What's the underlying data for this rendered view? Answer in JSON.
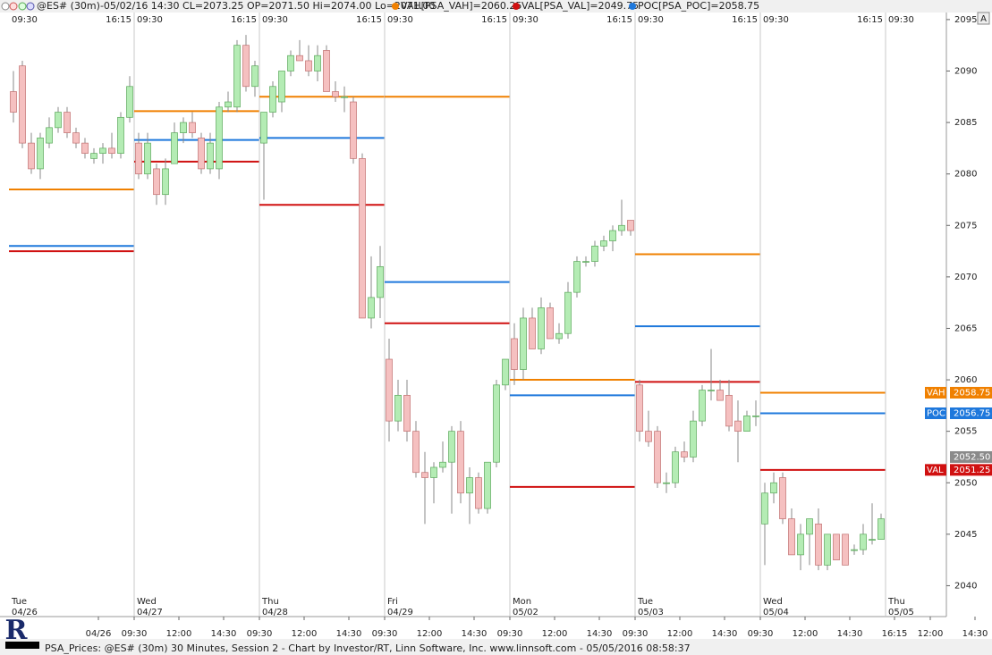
{
  "header": {
    "symbol": "@ES# (30m)-05/02/16 14:30 CL=2073.25 OP=2071.50 Hi=2074.00 Lo=2071.00",
    "indicators": [
      {
        "label": "VAH[PSA_VAH]=2060.25",
        "color": "#f08000"
      },
      {
        "label": "VAL[PSA_VAL]=2049.75",
        "color": "#d01010"
      },
      {
        "label": "POC[PSA_POC]=2058.75",
        "color": "#1e78dc"
      }
    ],
    "button": "A"
  },
  "chart_data": {
    "type": "candlestick",
    "ylim": [
      2037,
      2096.9
    ],
    "yticks": [
      2040,
      2045,
      2050,
      2055,
      2060,
      2065,
      2070,
      2075,
      2080,
      2085,
      2090,
      2095
    ],
    "up_color": "#b4ecb4",
    "down_color": "#f5c0c0",
    "vah_color": "#f08000",
    "poc_color": "#1e78dc",
    "val_color": "#d01010",
    "sessions": [
      {
        "weekday": "Tue",
        "date": "04/26",
        "open_time": "09:30",
        "close_time": "16:15",
        "vah": 2078.5,
        "poc": 2073,
        "val": 2072.5,
        "bars": [
          [
            2088,
            2090,
            2085,
            2086
          ],
          [
            2090.5,
            2091,
            2082.5,
            2083
          ],
          [
            2083,
            2084,
            2080,
            2080.5
          ],
          [
            2080.5,
            2084,
            2079.5,
            2083.5
          ],
          [
            2083,
            2085.5,
            2082.5,
            2084.5
          ],
          [
            2084.5,
            2086.5,
            2084,
            2086
          ],
          [
            2086,
            2086.5,
            2083.5,
            2084
          ],
          [
            2084,
            2084.5,
            2082.5,
            2083
          ],
          [
            2083,
            2083.5,
            2081.5,
            2082
          ],
          [
            2081.5,
            2082.5,
            2081,
            2082
          ],
          [
            2082,
            2083,
            2081,
            2082.5
          ],
          [
            2082.5,
            2084,
            2081.5,
            2082
          ],
          [
            2082,
            2086,
            2081.5,
            2085.5
          ],
          [
            2085.5,
            2089.5,
            2085,
            2088.5
          ]
        ]
      },
      {
        "weekday": "Wed",
        "date": "04/27",
        "open_time": "09:30",
        "close_time": "16:15",
        "vah": 2086.1,
        "poc": 2083.3,
        "val": 2081.2,
        "bars": [
          [
            2083,
            2084,
            2079.5,
            2080
          ],
          [
            2080,
            2084,
            2079.5,
            2083
          ],
          [
            2080.5,
            2081,
            2077,
            2078
          ],
          [
            2078,
            2081.5,
            2077,
            2080.5
          ],
          [
            2081,
            2085,
            2081,
            2084
          ],
          [
            2084,
            2085.5,
            2083,
            2085
          ],
          [
            2085,
            2086,
            2083.5,
            2084
          ],
          [
            2083.5,
            2084,
            2080,
            2080.5
          ],
          [
            2080.5,
            2084,
            2080,
            2083
          ],
          [
            2080.5,
            2087,
            2079.5,
            2086.5
          ],
          [
            2086.5,
            2088,
            2086,
            2087
          ],
          [
            2086.5,
            2093,
            2086,
            2092.5
          ],
          [
            2092.5,
            2093.5,
            2088,
            2088.5
          ],
          [
            2088.5,
            2091,
            2087.5,
            2090.5
          ]
        ]
      },
      {
        "weekday": "Thu",
        "date": "04/28",
        "open_time": "09:30",
        "close_time": "16:15",
        "vah": 2087.5,
        "poc": 2083.5,
        "val": 2077,
        "bars": [
          [
            2083,
            2086,
            2077.5,
            2086
          ],
          [
            2086,
            2089,
            2085.5,
            2088.5
          ],
          [
            2087,
            2090,
            2086,
            2090
          ],
          [
            2090,
            2092,
            2089.5,
            2091.5
          ],
          [
            2091.5,
            2093,
            2091,
            2091
          ],
          [
            2091,
            2092.5,
            2089.5,
            2090
          ],
          [
            2090,
            2092.5,
            2089,
            2091.5
          ],
          [
            2092,
            2092.5,
            2088,
            2088
          ],
          [
            2088,
            2089,
            2087,
            2087.5
          ],
          [
            2087.5,
            2088.5,
            2086,
            2087.5
          ],
          [
            2087,
            2087.5,
            2081,
            2081.5
          ],
          [
            2081.5,
            2082,
            2066,
            2066
          ],
          [
            2066,
            2072,
            2065,
            2068
          ],
          [
            2068,
            2073,
            2066,
            2071
          ]
        ]
      },
      {
        "weekday": "Fri",
        "date": "04/29",
        "open_time": "09:30",
        "close_time": "16:15",
        "vah": 2087.5,
        "poc": 2069.5,
        "val": 2065.5,
        "bars": [
          [
            2062,
            2064,
            2054,
            2056
          ],
          [
            2056,
            2060,
            2055,
            2058.5
          ],
          [
            2058.5,
            2060,
            2054,
            2055
          ],
          [
            2055,
            2056,
            2050.5,
            2051
          ],
          [
            2051,
            2053,
            2046,
            2050.5
          ],
          [
            2050.5,
            2052,
            2048,
            2051.5
          ],
          [
            2051.5,
            2054,
            2051,
            2052
          ],
          [
            2052,
            2055.5,
            2047,
            2055
          ],
          [
            2055,
            2056,
            2048,
            2049
          ],
          [
            2049,
            2051.5,
            2046,
            2050.5
          ],
          [
            2050.5,
            2051,
            2047,
            2047.5
          ],
          [
            2047.5,
            2052,
            2047,
            2052
          ],
          [
            2052,
            2060,
            2051.5,
            2059.5
          ],
          [
            2059.5,
            2062,
            2059,
            2062
          ]
        ]
      },
      {
        "weekday": "Mon",
        "date": "05/02",
        "open_time": "09:30",
        "close_time": "16:15",
        "vah": 2060,
        "poc": 2058.5,
        "val": 2049.6,
        "bars": [
          [
            2064,
            2065.5,
            2059.5,
            2061
          ],
          [
            2061,
            2067,
            2060,
            2066
          ],
          [
            2066,
            2067,
            2063,
            2063
          ],
          [
            2063,
            2068,
            2062.5,
            2067
          ],
          [
            2067,
            2067.5,
            2064,
            2064
          ],
          [
            2064,
            2065.5,
            2063.5,
            2064.5
          ],
          [
            2064.5,
            2069.5,
            2064,
            2068.5
          ],
          [
            2068.5,
            2072,
            2068,
            2071.5
          ],
          [
            2071.5,
            2072,
            2071,
            2071.5
          ],
          [
            2071.5,
            2073.5,
            2071,
            2073
          ],
          [
            2073,
            2074,
            2072.5,
            2073.5
          ],
          [
            2073.5,
            2075,
            2072.5,
            2074.5
          ],
          [
            2074.5,
            2077.5,
            2074,
            2075
          ],
          [
            2075.5,
            2075.5,
            2074,
            2074.5
          ]
        ]
      },
      {
        "weekday": "Tue",
        "date": "05/03",
        "open_time": "09:30",
        "close_time": "16:15",
        "vah": 2072.2,
        "poc": 2065.2,
        "val": 2059.8,
        "bars": [
          [
            2059.5,
            2060,
            2054,
            2055
          ],
          [
            2055,
            2057,
            2053.5,
            2054
          ],
          [
            2055,
            2055.5,
            2049.5,
            2050
          ],
          [
            2050,
            2051,
            2049,
            2050
          ],
          [
            2050,
            2053.5,
            2049.5,
            2053
          ],
          [
            2053,
            2054,
            2052,
            2052.5
          ],
          [
            2052.5,
            2057,
            2052,
            2056
          ],
          [
            2056,
            2059.5,
            2055.5,
            2059
          ],
          [
            2059,
            2063,
            2058,
            2059
          ],
          [
            2059,
            2060,
            2058,
            2058
          ],
          [
            2058.5,
            2060,
            2055,
            2055.5
          ],
          [
            2056,
            2058,
            2052,
            2055
          ],
          [
            2055,
            2057,
            2055,
            2056.5
          ],
          [
            2056.5,
            2058,
            2055.5,
            2056.5
          ]
        ]
      },
      {
        "weekday": "Wed",
        "date": "05/04",
        "open_time": "09:30",
        "close_time": "16:15",
        "vah": {
          "value": 2058.75,
          "label": "2058.75"
        },
        "poc": {
          "value": 2056.75,
          "label": "2056.75"
        },
        "val": {
          "value": 2051.25,
          "label": "2051.25"
        },
        "bars": [
          [
            2046,
            2050,
            2042,
            2049
          ],
          [
            2049,
            2051,
            2048,
            2050
          ],
          [
            2050.5,
            2051,
            2046,
            2046.5
          ],
          [
            2046.5,
            2047.5,
            2043,
            2043
          ],
          [
            2043,
            2046,
            2041.5,
            2045
          ],
          [
            2045,
            2046.5,
            2042,
            2046.5
          ],
          [
            2046,
            2047.5,
            2041.5,
            2042
          ],
          [
            2042,
            2045,
            2041.5,
            2045
          ],
          [
            2045,
            2045,
            2042.5,
            2042.5
          ],
          [
            2045,
            2045,
            2042,
            2042
          ],
          [
            2043.5,
            2044,
            2043,
            2043.5
          ],
          [
            2043.5,
            2046,
            2043,
            2045
          ],
          [
            2044.5,
            2048,
            2044,
            2044.5
          ],
          [
            2044.5,
            2047,
            2044.5,
            2046.5
          ]
        ]
      },
      {
        "weekday": "Thu",
        "date": "05/05",
        "open_time": "09:30",
        "bars": []
      }
    ],
    "level_tags": [
      "VAH",
      "POC",
      "VAL"
    ],
    "last_price": {
      "value": 2052.5,
      "label": "2052.50",
      "color": "#8a8a8a"
    },
    "x_axis_labels": [
      "04/26",
      "09:30",
      "12:00",
      "14:30",
      "09:30",
      "12:00",
      "14:30",
      "09:30",
      "12:00",
      "14:30",
      "09:30",
      "12:00",
      "14:30",
      "09:30",
      "12:00",
      "14:30",
      "09:30",
      "12:00",
      "14:30",
      "16:15",
      "12:00",
      "14:30"
    ]
  },
  "footer": "PSA_Prices: @ES# (30m) 30 Minutes, Session 2 - Chart by Investor/RT, Linn Software, Inc. www.linnsoft.com - 05/05/2016 08:58:37"
}
